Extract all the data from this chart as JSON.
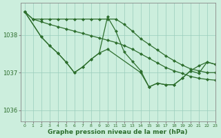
{
  "background_color": "#cceedd",
  "grid_color": "#99ccbb",
  "line_color": "#2d6e2d",
  "title": "Graphe pression niveau de la mer (hPa)",
  "xlim": [
    -0.5,
    23
  ],
  "ylim": [
    1035.7,
    1038.85
  ],
  "yticks": [
    1036,
    1037,
    1038
  ],
  "xticks": [
    0,
    1,
    2,
    3,
    4,
    5,
    6,
    7,
    8,
    9,
    10,
    11,
    12,
    13,
    14,
    15,
    16,
    17,
    18,
    19,
    20,
    21,
    22,
    23
  ],
  "line1_x": [
    0,
    1,
    2,
    3,
    4,
    5,
    6,
    7,
    8,
    9,
    10,
    11,
    12,
    13,
    14,
    15,
    16,
    17,
    18,
    19,
    20,
    21,
    22,
    23
  ],
  "line1_y": [
    1038.62,
    1038.42,
    1038.42,
    1038.42,
    1038.42,
    1038.42,
    1038.42,
    1038.42,
    1038.42,
    1038.42,
    1038.42,
    1038.42,
    1038.28,
    1038.1,
    1037.9,
    1037.75,
    1037.6,
    1037.45,
    1037.32,
    1037.2,
    1037.1,
    1037.05,
    1037.0,
    1037.0
  ],
  "line2_x": [
    0,
    1,
    2,
    3,
    4,
    5,
    6,
    7,
    8,
    9,
    10,
    11,
    12,
    13,
    14,
    15,
    16,
    17,
    18,
    19,
    20,
    21,
    22,
    23
  ],
  "line2_y": [
    1038.62,
    1038.42,
    1038.35,
    1038.28,
    1038.22,
    1038.16,
    1038.1,
    1038.04,
    1037.98,
    1037.92,
    1037.86,
    1037.8,
    1037.72,
    1037.62,
    1037.5,
    1037.38,
    1037.26,
    1037.14,
    1037.05,
    1036.98,
    1036.9,
    1036.85,
    1036.82,
    1036.8
  ],
  "line3_x": [
    0,
    2,
    3,
    4,
    5,
    6,
    7,
    8,
    9,
    10,
    14,
    15,
    16,
    17,
    18,
    19,
    20,
    21,
    22,
    23
  ],
  "line3_y": [
    1038.62,
    1037.95,
    1037.72,
    1037.52,
    1037.28,
    1037.0,
    1037.15,
    1037.35,
    1037.52,
    1037.62,
    1037.0,
    1036.62,
    1036.72,
    1036.68,
    1036.68,
    1036.85,
    1037.05,
    1037.18,
    1037.28,
    1037.22
  ],
  "line4_x": [
    0,
    2,
    3,
    4,
    5,
    6,
    7,
    8,
    9,
    10,
    11,
    12,
    13,
    14,
    15,
    16,
    17,
    18,
    19,
    20,
    21,
    22,
    23
  ],
  "line4_y": [
    1038.62,
    1037.95,
    1037.72,
    1037.52,
    1037.28,
    1037.0,
    1037.15,
    1037.35,
    1037.52,
    1038.48,
    1038.1,
    1037.55,
    1037.3,
    1037.05,
    1036.62,
    1036.72,
    1036.68,
    1036.68,
    1036.85,
    1037.05,
    1036.98,
    1037.28,
    1037.22
  ]
}
